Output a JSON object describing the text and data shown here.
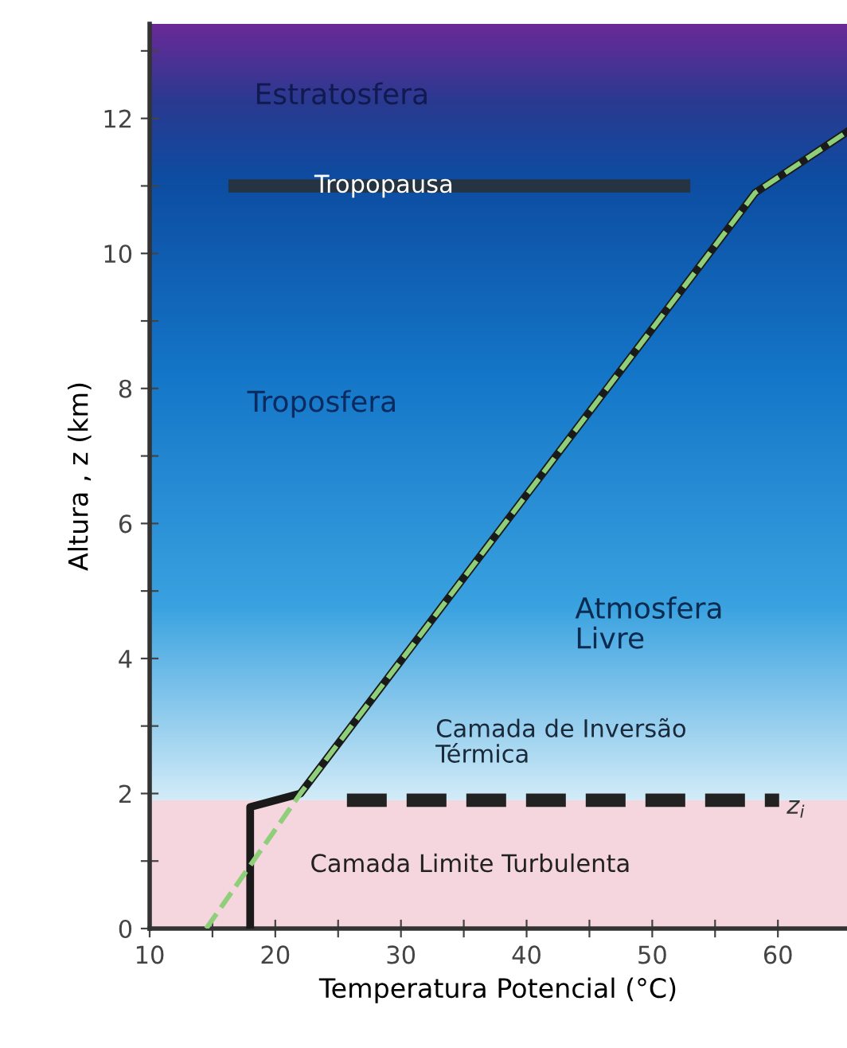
{
  "chart_data": {
    "type": "line",
    "xlabel": "Temperatura Potencial (°C)",
    "ylabel": "Altura , z (km)",
    "xlim": [
      10,
      65.5
    ],
    "ylim": [
      0,
      13.4
    ],
    "xticks": [
      10,
      {
        "value": 15,
        "label": null
      },
      20,
      {
        "value": 25,
        "label": null
      },
      30,
      {
        "value": 35,
        "label": null
      },
      40,
      {
        "value": 45,
        "label": null
      },
      50,
      {
        "value": 55,
        "label": null
      },
      60
    ],
    "yticks": [
      0,
      {
        "value": 1,
        "label": null
      },
      2,
      {
        "value": 3,
        "label": null
      },
      4,
      {
        "value": 5,
        "label": null
      },
      6,
      {
        "value": 7,
        "label": null
      },
      8,
      {
        "value": 9,
        "label": null
      },
      10,
      {
        "value": 11,
        "label": null
      },
      12,
      {
        "value": 13,
        "label": null
      }
    ],
    "grid": false,
    "bands": [
      {
        "axis": "y",
        "from": 0,
        "to": 1.9,
        "color": "#f5d5de"
      },
      {
        "axis": "y",
        "from": 1.9,
        "to": 13.4,
        "color": "#1476c8"
      }
    ],
    "series": [
      {
        "color": "#1a1a1a",
        "x": [
          18,
          18,
          22,
          58.2,
          65.5
        ],
        "values": [
          0,
          1.8,
          2.0,
          10.9,
          11.8
        ],
        "line_style": "solid"
      },
      {
        "color": "#8fcf7a",
        "x": [
          14.5,
          22,
          58.2,
          65.5
        ],
        "values": [
          0,
          2.0,
          10.9,
          11.8
        ],
        "line_style": "dashed"
      },
      {
        "name": "Tropopausa",
        "color": "#263442",
        "x": [
          16.8,
          52.5
        ],
        "values": [
          11,
          11
        ],
        "line_style": "solid"
      },
      {
        "name": "z$_{i}$",
        "color": "#222222",
        "x": [
          25.7,
          60.1
        ],
        "values": [
          1.9,
          1.9
        ],
        "line_style": "dashed"
      }
    ],
    "annotations": [
      "Estratosfera",
      "Troposfera",
      "Atmosfera\nLivre",
      "Camada de Inversão\nTérmica",
      "Camada Limite Turbulenta"
    ]
  }
}
